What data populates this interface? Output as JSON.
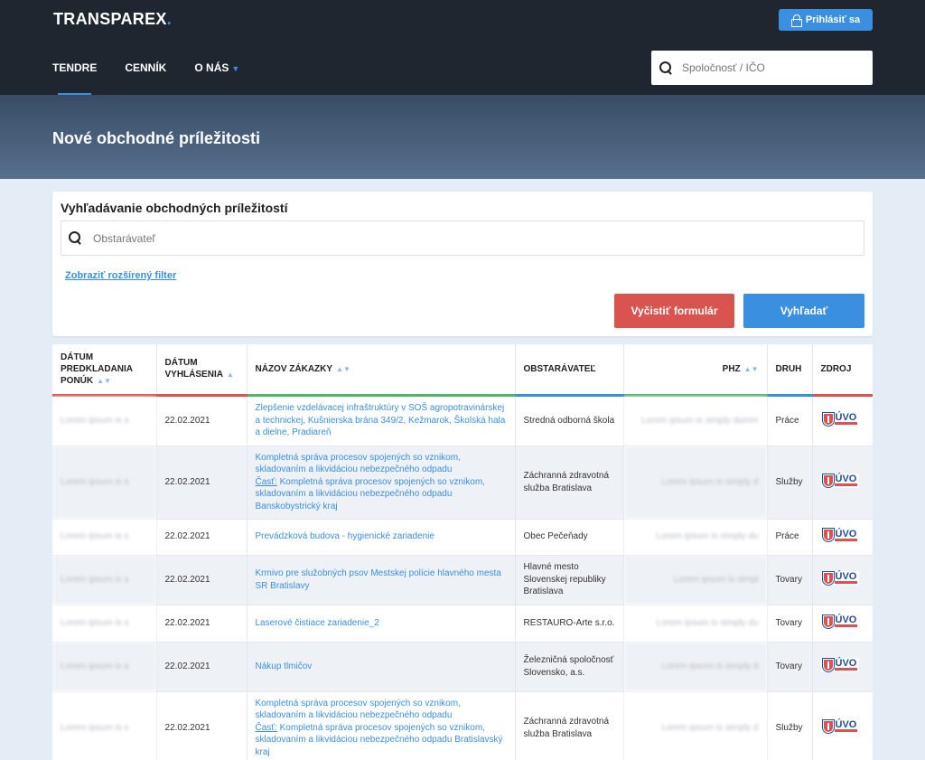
{
  "header": {
    "logo": "TRANSPAREX",
    "logo_dot": ".",
    "login_label": "Prihlásiť sa",
    "nav": [
      {
        "label": "TENDRE"
      },
      {
        "label": "CENNÍK"
      },
      {
        "label": "O NÁS"
      }
    ],
    "search_placeholder": "Spoločnosť / IČO"
  },
  "hero": {
    "title": "Nové obchodné príležitosti"
  },
  "search_panel": {
    "title": "Vyhľadávanie obchodných príležitostí",
    "placeholder": "Obstarávateľ",
    "advanced_link": "Zobraziť rozšírený filter",
    "clear_label": "Vyčistiť formulár",
    "search_label": "Vyhľadať"
  },
  "table": {
    "headers": [
      "DÁTUM PREDKLADANIA PONÚK",
      "DÁTUM VYHLÁSENIA",
      "NÁZOV ZÁKAZKY",
      "OBSTARÁVATEĽ",
      "PHZ",
      "DRUH",
      "ZDROJ"
    ],
    "source_badge": "ÚVO",
    "rows": [
      {
        "deadline": "Lorem ipsum is s",
        "date": "22.02.2021",
        "name": "Zlepšenie vzdelávacej infraštruktúry v SOŠ agropotravinárskej a technickej, Kušnierska brána 349/2, Kežmarok, Školská hala a dielne, Pradiareň",
        "part_label": "",
        "part": "",
        "buyer": "Stredná odborná škola",
        "phz": "Lorem ipsum is simply dumm",
        "type": "Práce"
      },
      {
        "deadline": "Lorem ipsum is s",
        "date": "22.02.2021",
        "name": "Kompletná správa procesov spojených so vznikom, skladovaním a likvidáciou nebezpečného odpadu",
        "part_label": "Časť:",
        "part": "Kompletná správa procesov spojených so vznikom, skladovaním a likvidáciou nebezpečného odpadu Banskobystrický kraj",
        "buyer": "Záchranná zdravotná služba Bratislava",
        "phz": "Lorem ipsum is simply d",
        "type": "Služby"
      },
      {
        "deadline": "Lorem ipsum is s",
        "date": "22.02.2021",
        "name": "Prevádzková budova - hygienické zariadenie",
        "part_label": "",
        "part": "",
        "buyer": "Obec Pečeňady",
        "phz": "Lorem ipsum is simply du",
        "type": "Práce"
      },
      {
        "deadline": "Lorem ipsum is s",
        "date": "22.02.2021",
        "name": "Krmivo pre služobných psov Mestskej polície hlavného mesta SR Bratislavy",
        "part_label": "",
        "part": "",
        "buyer": "Hlavné mesto Slovenskej republiky Bratislava",
        "phz": "Lorem ipsum is simpl",
        "type": "Tovary"
      },
      {
        "deadline": "Lorem ipsum is s",
        "date": "22.02.2021",
        "name": "Laserové čistiace zariadenie_2",
        "part_label": "",
        "part": "",
        "buyer": "RESTAURO-Arte s.r.o.",
        "phz": "Lorem ipsum is simply du",
        "type": "Tovary"
      },
      {
        "deadline": "Lorem ipsum is s",
        "date": "22.02.2021",
        "name": "Nákup tlmičov",
        "part_label": "",
        "part": "",
        "buyer": "Železničná spoločnosť Slovensko, a.s.",
        "phz": "Lorem ipsum is simply d",
        "type": "Tovary"
      },
      {
        "deadline": "Lorem ipsum is s",
        "date": "22.02.2021",
        "name": "Kompletná správa procesov spojených so vznikom, skladovaním a likvidáciou nebezpečného odpadu",
        "part_label": "Časť:",
        "part": "Kompletná správa procesov spojených so vznikom, skladovaním a likvidáciou nebezpečného odpadu Bratislavský kraj",
        "buyer": "Záchranná zdravotná služba Bratislava",
        "phz": "Lorem ipsum is simply d",
        "type": "Služby"
      }
    ]
  }
}
